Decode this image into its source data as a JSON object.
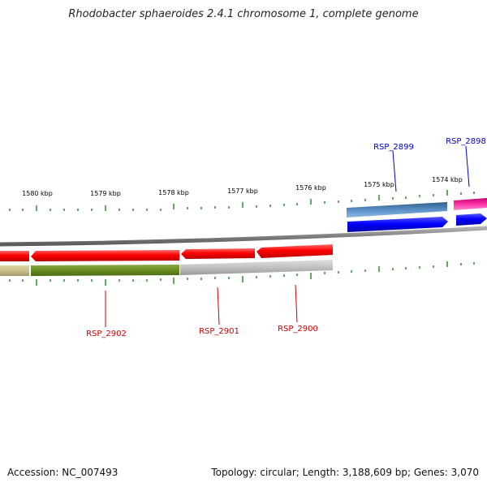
{
  "title": "Rhodobacter sphaeroides 2.4.1 chromosome 1, complete genome",
  "footer": {
    "accession": "Accession: NC_007493",
    "topology": "Topology: circular; Length: 3,188,609 bp; Genes: 3,070"
  },
  "scale_labels": [
    "1580 kbp",
    "1579 kbp",
    "1578 kbp",
    "1577 kbp",
    "1576 kbp",
    "1575 kbp",
    "1574 kbp"
  ],
  "gene_labels": [
    {
      "name": "RSP_2899",
      "color": "#0000cc"
    },
    {
      "name": "RSP_2898",
      "color": "#0000cc"
    },
    {
      "name": "RSP_2902",
      "color": "#cc0000"
    },
    {
      "name": "RSP_2901",
      "color": "#cc0000"
    },
    {
      "name": "RSP_2900",
      "color": "#cc0000"
    }
  ],
  "colors": {
    "tick": "#2e8b2e",
    "backbone": "#8a8a8a",
    "reverse_cds": "#ff0000",
    "forward_cds": "#0000ff",
    "cog_steelblue": "#5b8fc7",
    "cog_magenta": "#ff33aa",
    "cog_olive": "#6b8e23",
    "cog_khaki": "#c8c08a",
    "cog_grey": "#c0c0c0"
  }
}
